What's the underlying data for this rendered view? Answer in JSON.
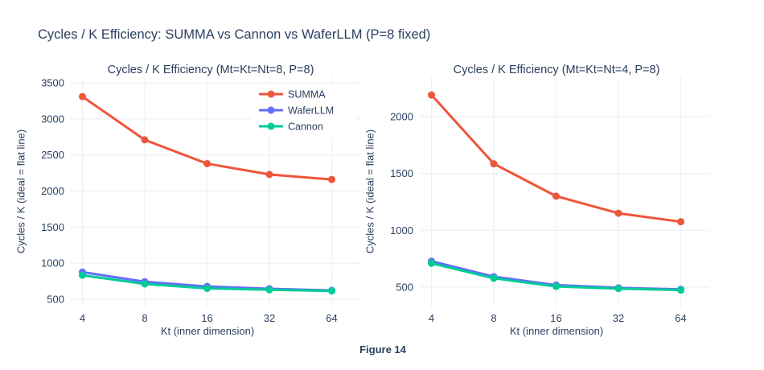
{
  "figure": {
    "title": "Cycles / K Efficiency: SUMMA vs Cannon vs WaferLLM (P=8 fixed)",
    "caption": "Figure 14"
  },
  "colors": {
    "text": "#2a3f5f",
    "grid": "#ecf0f8",
    "background": "#ffffff",
    "summa": "#EF553B",
    "waferllm": "#636EFA",
    "cannon": "#00CC96"
  },
  "chart_data": [
    {
      "type": "line",
      "title": "Cycles / K Efficiency (Mt=Kt=Nt=8, P=8)",
      "xlabel": "Kt (inner dimension)",
      "ylabel": "Cycles / K (ideal = flat line)",
      "x_scale": "log2",
      "categories": [
        4,
        8,
        16,
        32,
        64
      ],
      "series": [
        {
          "name": "SUMMA",
          "color": "#EF553B",
          "values": [
            3310,
            2710,
            2380,
            2230,
            2160
          ]
        },
        {
          "name": "WaferLLM",
          "color": "#636EFA",
          "values": [
            875,
            742,
            676,
            645,
            622
          ]
        },
        {
          "name": "Cannon",
          "color": "#00CC96",
          "values": [
            832,
            712,
            650,
            630,
            614
          ]
        }
      ],
      "yticks": [
        500,
        1000,
        1500,
        2000,
        2500,
        3000,
        3500
      ],
      "ylim": [
        388,
        3590
      ],
      "grid": true,
      "legend_position": "top-right-inside"
    },
    {
      "type": "line",
      "title": "Cycles / K Efficiency (Mt=Kt=Nt=4, P=8)",
      "xlabel": "Kt (inner dimension)",
      "ylabel": "Cycles / K (ideal = flat line)",
      "x_scale": "log2",
      "categories": [
        4,
        8,
        16,
        32,
        64
      ],
      "series": [
        {
          "name": "SUMMA",
          "color": "#EF553B",
          "values": [
            2190,
            1585,
            1300,
            1150,
            1075
          ]
        },
        {
          "name": "WaferLLM",
          "color": "#636EFA",
          "values": [
            728,
            592,
            518,
            494,
            480
          ]
        },
        {
          "name": "Cannon",
          "color": "#00CC96",
          "values": [
            710,
            578,
            506,
            487,
            474
          ]
        }
      ],
      "yticks": [
        500,
        1000,
        1500,
        2000
      ],
      "ylim": [
        323,
        2353
      ],
      "grid": true,
      "legend_position": "none"
    }
  ]
}
